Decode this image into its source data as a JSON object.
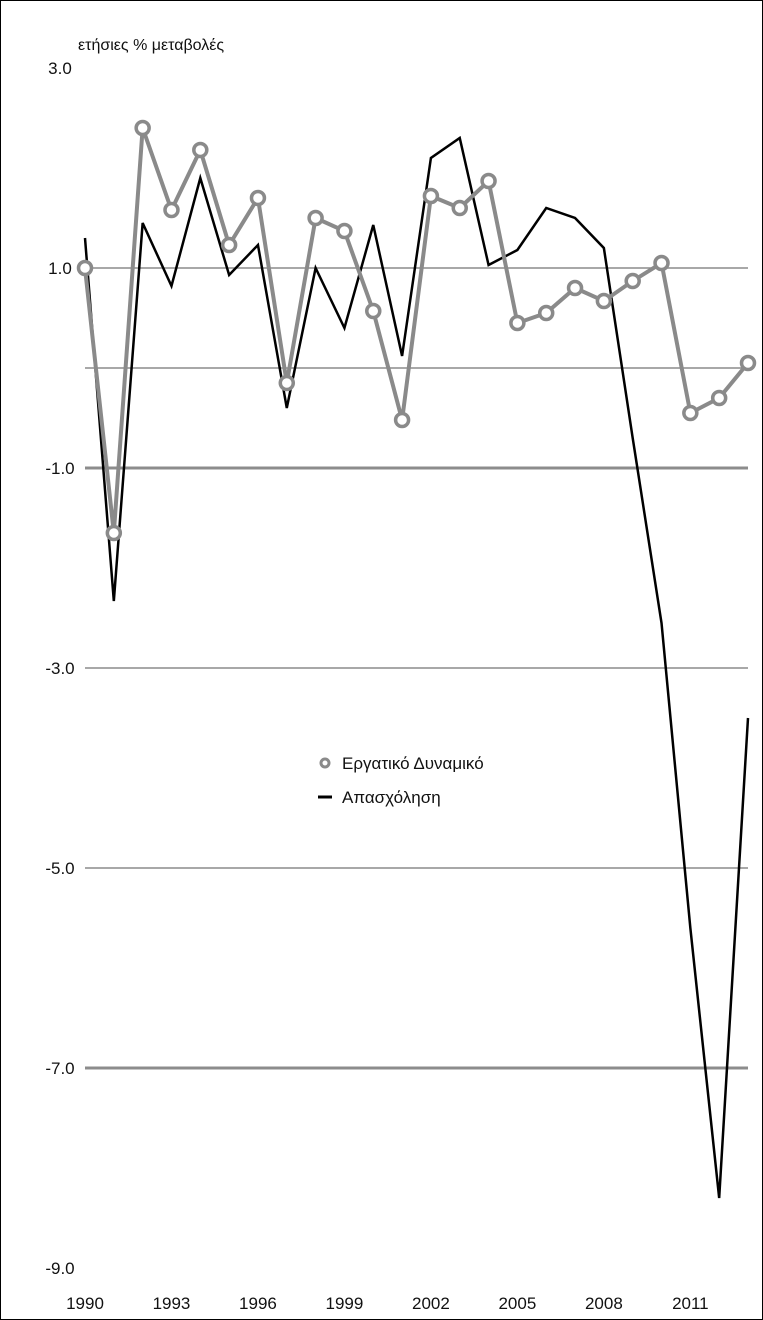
{
  "chart_data": {
    "type": "line",
    "ylabel": "ετήσιες % μεταβολές",
    "ylim": [
      -9,
      3
    ],
    "y_ticks": [
      "3.0",
      "1.0",
      "-1.0",
      "-3.0",
      "-5.0",
      "-7.0",
      "-9.0"
    ],
    "y_tick_values": [
      3,
      1,
      -1,
      -3,
      -5,
      -7,
      -9
    ],
    "extra_gridlines": [
      0
    ],
    "x_ticks": [
      "1990",
      "1993",
      "1996",
      "1999",
      "2002",
      "2005",
      "2008",
      "2011"
    ],
    "x_tick_values": [
      1990,
      1993,
      1996,
      1999,
      2002,
      2005,
      2008,
      2011
    ],
    "x": [
      1990,
      1991,
      1992,
      1993,
      1994,
      1995,
      1996,
      1997,
      1998,
      1999,
      2000,
      2001,
      2002,
      2003,
      2004,
      2005,
      2006,
      2007,
      2008,
      2009,
      2010,
      2011,
      2012,
      2013
    ],
    "series": [
      {
        "name": "Εργατικό Δυναμικό",
        "color": "#8a8a8a",
        "marker": "circle",
        "values": [
          1.0,
          -1.65,
          2.4,
          1.58,
          2.18,
          1.23,
          1.7,
          -0.15,
          1.5,
          1.37,
          0.57,
          -0.52,
          1.72,
          1.6,
          1.87,
          0.45,
          0.55,
          0.8,
          0.67,
          0.87,
          1.05,
          -0.45,
          -0.3,
          0.05
        ]
      },
      {
        "name": "Απασχόληση",
        "color": "#000000",
        "marker": "none",
        "values": [
          1.3,
          -2.33,
          1.45,
          0.82,
          1.9,
          0.93,
          1.23,
          -0.4,
          1.0,
          0.4,
          1.43,
          0.12,
          2.1,
          2.3,
          1.03,
          1.18,
          1.6,
          1.5,
          1.2,
          -0.7,
          -2.55,
          -5.6,
          -8.3,
          -3.5
        ]
      }
    ],
    "grid": "horizontal",
    "legend_position": "center"
  }
}
